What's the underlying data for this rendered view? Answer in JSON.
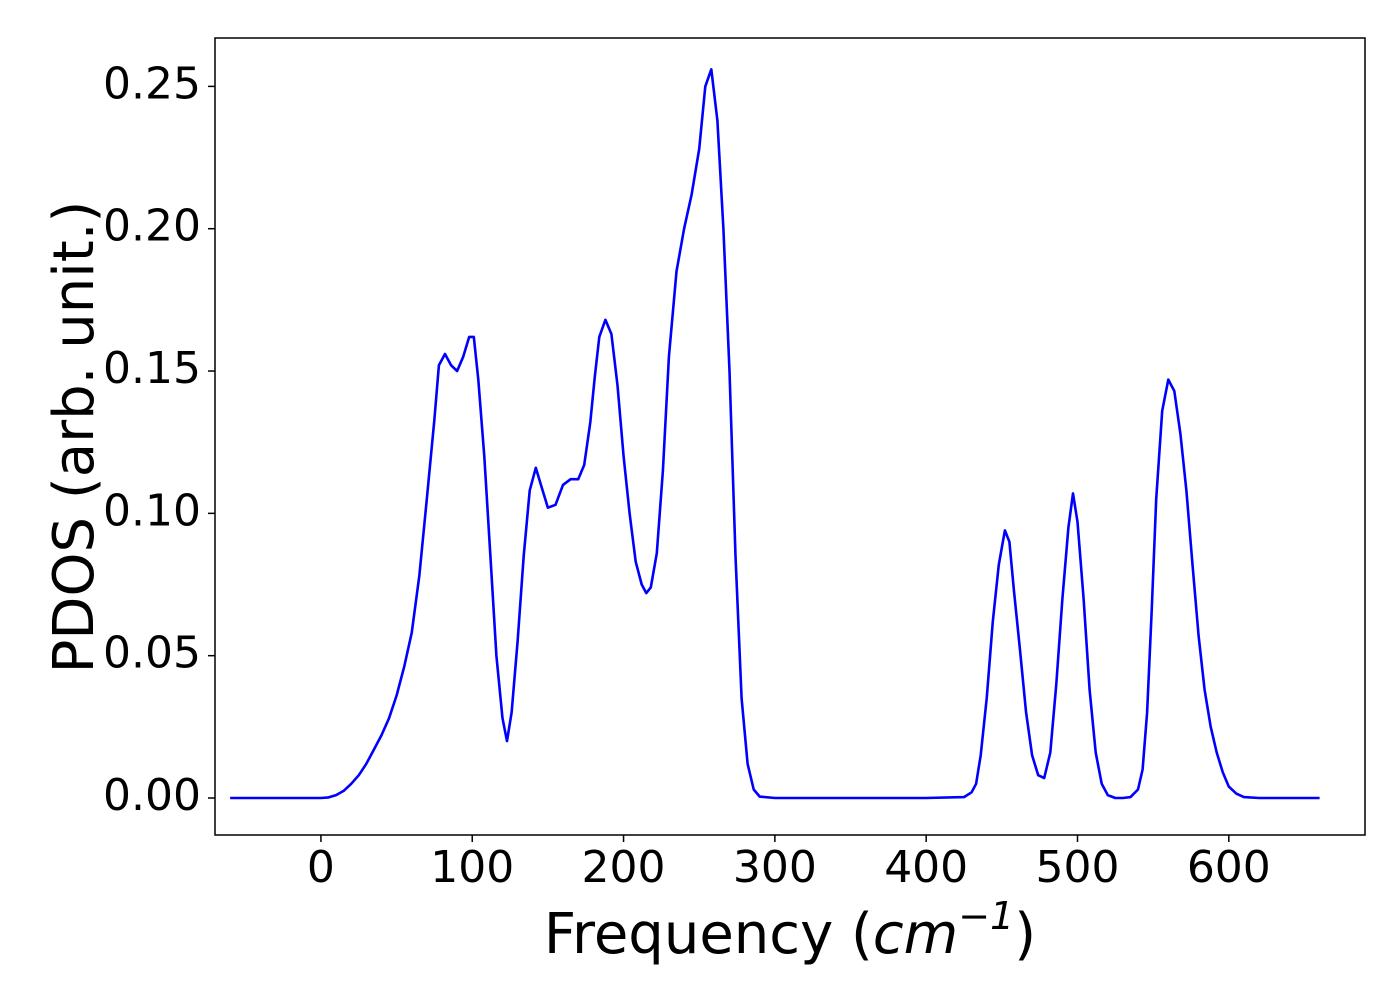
{
  "chart_data": {
    "type": "line",
    "title": "",
    "xlabel": {
      "prefix": "Frequency (",
      "unit_base": "cm",
      "unit_exp": "−1",
      "suffix": ")"
    },
    "ylabel": "PDOS (arb. unit.)",
    "xlim": [
      -70,
      690
    ],
    "ylim": [
      -0.013,
      0.267
    ],
    "xticks": [
      0,
      100,
      200,
      300,
      400,
      500,
      600
    ],
    "xtick_labels": [
      "0",
      "100",
      "200",
      "300",
      "400",
      "500",
      "600"
    ],
    "yticks": [
      0.0,
      0.05,
      0.1,
      0.15,
      0.2,
      0.25
    ],
    "ytick_labels": [
      "0.00",
      "0.05",
      "0.10",
      "0.15",
      "0.20",
      "0.25"
    ],
    "grid": false,
    "legend": "none",
    "series": [
      {
        "color": "#0000ff",
        "x": [
          -60,
          -40,
          -20,
          0,
          5,
          10,
          15,
          20,
          25,
          30,
          35,
          40,
          45,
          50,
          55,
          60,
          65,
          70,
          75,
          78,
          82,
          86,
          90,
          94,
          98,
          101,
          104,
          108,
          112,
          116,
          120,
          123,
          126,
          130,
          134,
          138,
          142,
          146,
          150,
          155,
          160,
          165,
          170,
          174,
          178,
          181,
          184,
          188,
          192,
          196,
          200,
          204,
          208,
          212,
          215,
          218,
          222,
          226,
          230,
          235,
          240,
          245,
          250,
          254,
          258,
          262,
          266,
          270,
          274,
          278,
          282,
          286,
          290,
          300,
          350,
          400,
          425,
          430,
          433,
          436,
          440,
          444,
          448,
          452,
          455,
          458,
          462,
          466,
          470,
          474,
          478,
          482,
          486,
          490,
          494,
          497,
          500,
          504,
          508,
          512,
          516,
          520,
          525,
          530,
          535,
          540,
          543,
          546,
          549,
          552,
          556,
          560,
          564,
          568,
          572,
          576,
          580,
          584,
          588,
          592,
          596,
          600,
          605,
          610,
          620,
          640,
          660
        ],
        "y": [
          0.0,
          0.0,
          0.0,
          0.0,
          0.0002,
          0.001,
          0.0025,
          0.005,
          0.008,
          0.012,
          0.017,
          0.022,
          0.028,
          0.036,
          0.046,
          0.058,
          0.078,
          0.105,
          0.133,
          0.152,
          0.156,
          0.152,
          0.15,
          0.155,
          0.162,
          0.162,
          0.147,
          0.12,
          0.085,
          0.05,
          0.028,
          0.02,
          0.03,
          0.055,
          0.085,
          0.108,
          0.116,
          0.109,
          0.102,
          0.103,
          0.11,
          0.112,
          0.112,
          0.117,
          0.132,
          0.148,
          0.162,
          0.168,
          0.163,
          0.145,
          0.12,
          0.1,
          0.083,
          0.075,
          0.072,
          0.074,
          0.086,
          0.115,
          0.155,
          0.185,
          0.2,
          0.212,
          0.228,
          0.25,
          0.256,
          0.238,
          0.2,
          0.15,
          0.085,
          0.035,
          0.012,
          0.003,
          0.0005,
          0.0,
          0.0,
          0.0,
          0.0003,
          0.002,
          0.005,
          0.015,
          0.035,
          0.062,
          0.082,
          0.094,
          0.09,
          0.073,
          0.052,
          0.03,
          0.015,
          0.008,
          0.007,
          0.016,
          0.04,
          0.07,
          0.095,
          0.107,
          0.097,
          0.07,
          0.038,
          0.016,
          0.005,
          0.001,
          0.0,
          0.0,
          0.0003,
          0.003,
          0.01,
          0.03,
          0.065,
          0.105,
          0.136,
          0.147,
          0.143,
          0.128,
          0.108,
          0.082,
          0.057,
          0.038,
          0.025,
          0.016,
          0.009,
          0.004,
          0.0015,
          0.0003,
          0.0,
          0.0,
          0.0
        ]
      }
    ]
  }
}
